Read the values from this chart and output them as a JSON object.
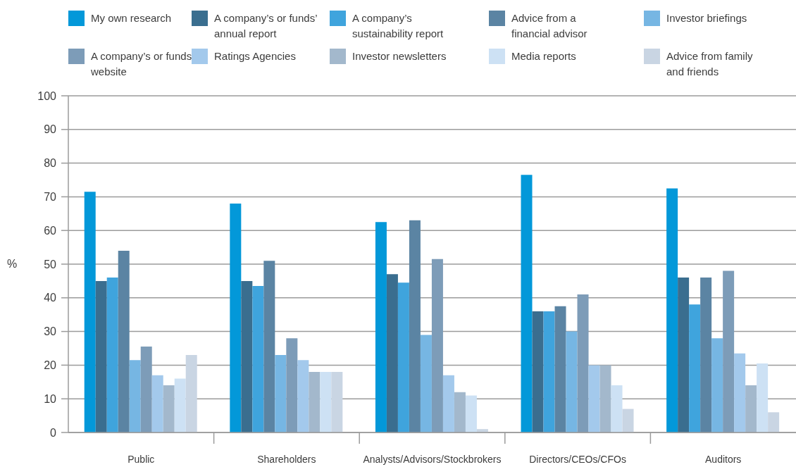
{
  "chart_data": {
    "type": "bar",
    "categories": [
      "Public",
      "Shareholders",
      "Analysts/Advisors/Stockbrokers",
      "Directors/CEOs/CFOs",
      "Auditors"
    ],
    "series": [
      {
        "name": "My own research",
        "color": "#0398d9",
        "values": [
          71.5,
          68,
          62.5,
          76.5,
          72.5
        ]
      },
      {
        "name": "A company’s or funds’ annual report",
        "color": "#3a6e8f",
        "values": [
          45,
          45,
          47,
          36,
          46
        ]
      },
      {
        "name": "A company’s sustainability report",
        "color": "#3fa4dd",
        "values": [
          46,
          43.5,
          44.5,
          36,
          38
        ]
      },
      {
        "name": "Advice from a financial advisor",
        "color": "#5b84a3",
        "values": [
          54,
          51,
          63,
          37.5,
          46
        ]
      },
      {
        "name": "Investor briefings",
        "color": "#76b6e3",
        "values": [
          21.5,
          23,
          29,
          30,
          28
        ]
      },
      {
        "name": "A company’s or funds’ website",
        "color": "#7d9cb8",
        "values": [
          25.5,
          28,
          51.5,
          41,
          48
        ]
      },
      {
        "name": "Ratings Agencies",
        "color": "#a3c9ec",
        "values": [
          17,
          21.5,
          17,
          20,
          23.5
        ]
      },
      {
        "name": "Investor newsletters",
        "color": "#a3b8cc",
        "values": [
          14,
          18,
          12,
          20,
          14
        ]
      },
      {
        "name": "Media reports",
        "color": "#cde1f4",
        "values": [
          16,
          18,
          11,
          14,
          20.5
        ]
      },
      {
        "name": "Advice from family and friends",
        "color": "#c9d5e3",
        "values": [
          23,
          18,
          1,
          7,
          6
        ]
      }
    ],
    "ylabel": "%",
    "ylim": [
      0,
      100
    ],
    "yticks": [
      0,
      10,
      20,
      30,
      40,
      50,
      60,
      70,
      80,
      90,
      100
    ],
    "grid": "y",
    "legend": "top"
  }
}
